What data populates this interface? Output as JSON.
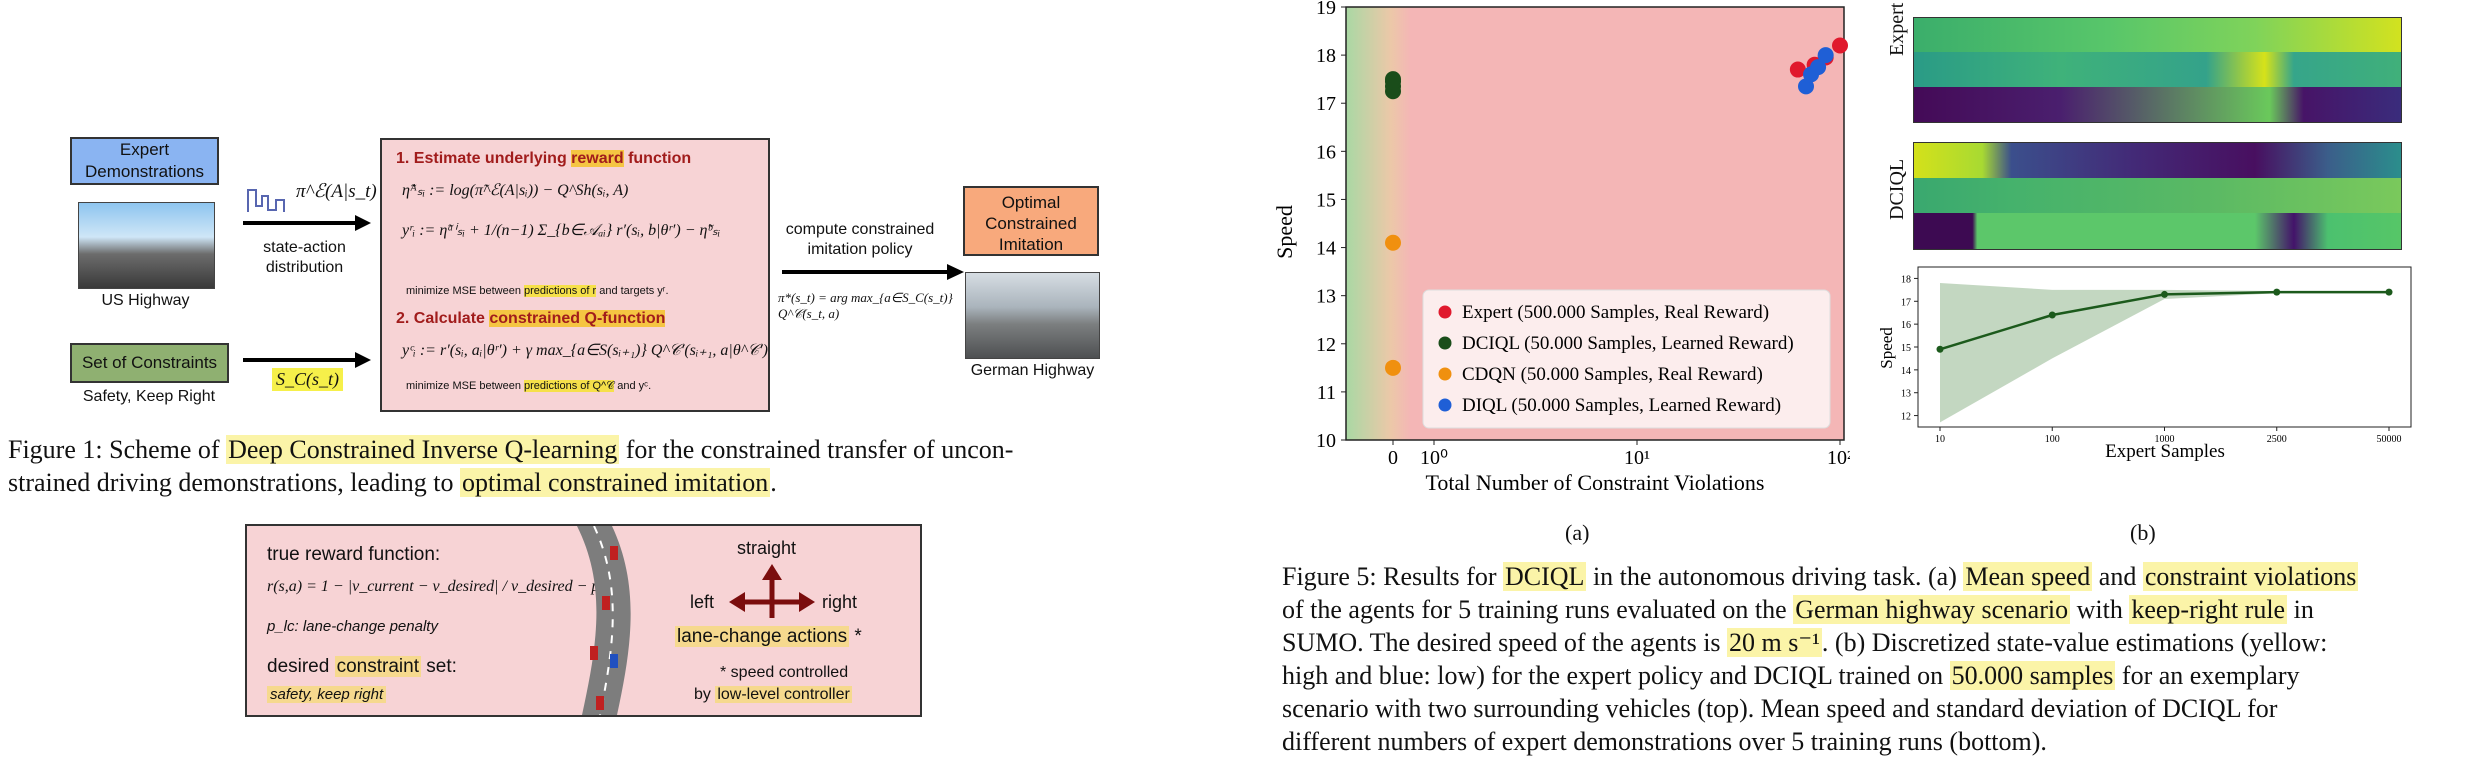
{
  "fig1": {
    "expert_demo": "Expert Demonstrations",
    "us_highway": "US Highway",
    "state_action": "state-action distribution",
    "policy_expr": "π^ℰ(A|s_t)",
    "constraints_title": "Set of Constraints",
    "constraints_sub": "Safety, Keep Right",
    "sc_expr": "S_C(s_t)",
    "step1_prefix": "1. Estimate underlying ",
    "step1_hl": "reward",
    "step1_suffix": " function",
    "eq1": "η̃ᴬₛᵢ := log(π̃^ℰ(A|sᵢ)) − Q^Sh(sᵢ, A)",
    "eq2": "yʳᵢ := η̃ᵃⁱₛᵢ + 1/(n−1) Σ_{b∈𝒜ₐᵢ} r′(sᵢ, b|θʳ′) − η̃ᵇₛᵢ",
    "mse1_prefix": "minimize MSE between ",
    "mse1_hl": "predictions of r",
    "mse1_suffix": " and targets yʳ.",
    "step2_prefix": "2. Calculate ",
    "step2_hl": "constrained Q-function",
    "eq3": "yᶜᵢ := r′(sᵢ, aᵢ|θʳ′) + γ max_{a∈S(sᵢ₊₁)} Q^𝒞′(sᵢ₊₁, a|θ^𝒞′)",
    "mse2_prefix": "minimize MSE between ",
    "mse2_hl": "predictions of Q^𝒞",
    "mse2_suffix": " and yᶜ.",
    "compute_label": "compute constrained imitation policy",
    "policy_eq": "π*(s_t) = arg max_{a∈S_C(s_t)} Q^𝒞(s_t, a)",
    "optimal_box": "Optimal Constrained Imitation",
    "german_highway": "German Highway",
    "caption_1": "Figure 1: Scheme of ",
    "caption_hl1": "Deep Constrained Inverse Q-learning",
    "caption_2": " for the constrained transfer of uncon-",
    "caption_3": "strained driving demonstrations, leading to ",
    "caption_hl2": "optimal constrained imitation",
    "caption_4": "."
  },
  "reward_box": {
    "title": "true reward function:",
    "formula": "r(s,a) = 1 − |v_current − v_desired| / v_desired − p_lc",
    "plc": "p_lc: lane-change penalty",
    "desired_prefix": "desired ",
    "desired_hl": "constraint",
    "desired_suffix": " set:",
    "safety": "safety, keep right",
    "straight": "straight",
    "left": "left",
    "right": "right",
    "actions": "lane-change actions",
    "asterisk": " *",
    "speed_note1": "* speed controlled",
    "speed_note2_prefix": "by ",
    "speed_note2_hl": "low-level controller"
  },
  "chart_data": [
    {
      "type": "scatter",
      "ylabel": "Speed",
      "xlabel_prefix": "Total Number of ",
      "xlabel_hl": "Constraint Violations",
      "x_ticks": [
        "0",
        "10⁰",
        "10¹",
        "10²"
      ],
      "y_ticks": [
        "10",
        "11",
        "12",
        "13",
        "14",
        "15",
        "16",
        "17",
        "18",
        "19"
      ],
      "ylim": [
        10,
        19
      ],
      "x_scale": "symlog",
      "series": [
        {
          "name": "Expert (500.000 Samples, Real Reward)",
          "color": "#e0192d",
          "points": [
            [
              62,
              17.7
            ],
            [
              75,
              17.8
            ],
            [
              85,
              17.95
            ],
            [
              100,
              18.2
            ]
          ]
        },
        {
          "name": "DCIQL (50.000 Samples, Learned Reward)",
          "color": "#1a4d1a",
          "points": [
            [
              0,
              17.25
            ],
            [
              0,
              17.35
            ],
            [
              0,
              17.45
            ],
            [
              0,
              17.5
            ]
          ]
        },
        {
          "name": "CDQN (50.000 Samples, Real Reward)",
          "color": "#f0900f",
          "points": [
            [
              0,
              14.1
            ],
            [
              0,
              11.5
            ]
          ]
        },
        {
          "name": "DIQL (50.000 Samples, Learned Reward)",
          "color": "#1f5fd6",
          "points": [
            [
              68,
              17.35
            ],
            [
              72,
              17.6
            ],
            [
              78,
              17.75
            ],
            [
              85,
              18.0
            ]
          ]
        }
      ],
      "panel_label": "(a)"
    },
    {
      "type": "line",
      "ylabel": "Speed",
      "xlabel": "Expert Samples",
      "x_ticks": [
        "10",
        "100",
        "1000",
        "2500",
        "50000"
      ],
      "y_ticks": [
        "12",
        "13",
        "14",
        "15",
        "16",
        "17",
        "18"
      ],
      "ylim": [
        11.5,
        18.5
      ],
      "series": [
        {
          "name": "",
          "values": [
            14.9,
            16.4,
            17.3,
            17.4,
            17.4
          ],
          "upper": [
            17.8,
            17.5,
            17.5,
            17.45,
            17.45
          ],
          "lower": [
            11.7,
            14.5,
            17.1,
            17.35,
            17.35
          ]
        }
      ],
      "panel_label": "(b)"
    }
  ],
  "heatmaps": {
    "expert_label": "Expert",
    "dciql_label": "DCIQL"
  },
  "fig5": {
    "l1_a": "Figure 5: Results for ",
    "l1_hl1": "DCIQL",
    "l1_b": " in the autonomous driving task. (a) ",
    "l1_hl2": "Mean speed",
    "l1_c": " and ",
    "l1_hl3": "constraint violations",
    "l2_a": "of the agents for 5 training runs evaluated on the ",
    "l2_hl1": "German highway scenario",
    "l2_b": " with ",
    "l2_hl2": "keep-right rule",
    "l2_c": " in",
    "l3_a": "SUMO. The desired speed of the agents is ",
    "l3_hl1": "20 m s⁻¹",
    "l3_b": ". (b) Discretized state-value estimations (yellow:",
    "l4_a": "high and blue: low) for the expert policy and DCIQL trained on ",
    "l4_hl1": "50.000 samples",
    "l4_b": " for an exemplary",
    "l5": "scenario with two surrounding vehicles (top). Mean speed and standard deviation of DCIQL for",
    "l6": "different numbers of expert demonstrations over 5 training runs (bottom)."
  }
}
